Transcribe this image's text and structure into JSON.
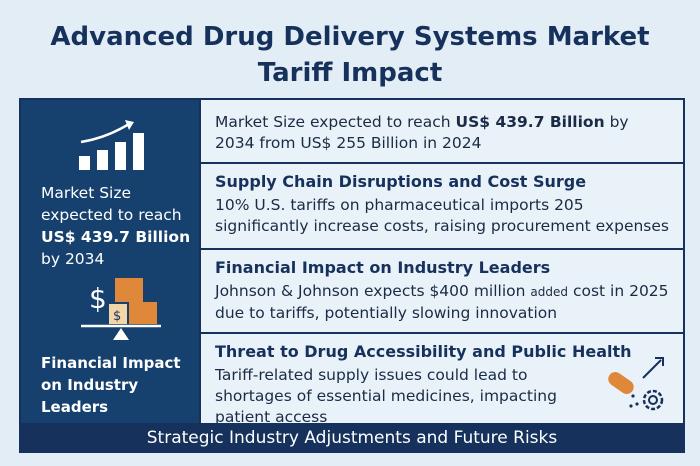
{
  "header": {
    "title_line1": "Advanced Drug Delivery Systems Market",
    "title_line2": "Tariff Impact"
  },
  "sidebar": {
    "market": {
      "before": "Market Size expected to reach",
      "bold": "US$ 439.7 Billion",
      "after": "by 2034"
    },
    "caption": "Financial Impact on Industry Leaders"
  },
  "rows": [
    {
      "body": {
        "before": "Market Size expected to reach",
        "bold": "US$ 439.7 Billion",
        "after": "by 2034 from US$ 255 Billion in 2024"
      }
    },
    {
      "heading": "Supply Chain Disruptions and Cost Surge",
      "body": "10% U.S. tariffs on pharmaceutical imports 205 significantly increase costs, raising procurement expenses"
    },
    {
      "heading": "Financial Impact on Industry Leaders",
      "body": {
        "before": "Johnson & Johnson expects $400 million",
        "small": "added",
        "after": "cost in 2025 due to tariffs, potentially slowing innovation"
      }
    },
    {
      "heading": "Threat to Drug Accessibility and Public Health",
      "body": "Tariff-related supply issues could lead to shortages of essential medicines, impacting patient access"
    }
  ],
  "footer": "Strategic Industry Adjustments and Future Risks"
}
